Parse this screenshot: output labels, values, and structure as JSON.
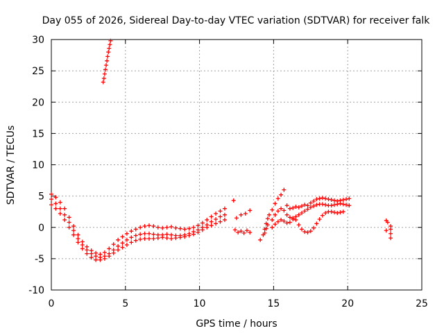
{
  "chart_data": {
    "type": "scatter",
    "title": "Day 055 of 2026, Sidereal Day-to-day VTEC variation (SDTVAR) for receiver falk",
    "xlabel": "GPS time / hours",
    "ylabel": "SDTVAR / TECUs",
    "xlim": [
      0,
      25
    ],
    "ylim": [
      -10,
      30
    ],
    "xticks": [
      0,
      5,
      10,
      15,
      20,
      25
    ],
    "yticks": [
      -10,
      -5,
      0,
      5,
      10,
      15,
      20,
      25,
      30
    ],
    "xtick_labels": [
      "0",
      "5",
      "10",
      "15",
      "20",
      "25"
    ],
    "ytick_labels": [
      "-10",
      "-5",
      "0",
      "5",
      "10",
      "15",
      "20",
      "25",
      "30"
    ],
    "grid": true,
    "legend": "none",
    "marker": "+",
    "color": "#ff0000",
    "series": [
      {
        "name": "main-track",
        "x": [
          0.0,
          0.3,
          0.6,
          0.9,
          1.2,
          1.5,
          1.8,
          2.1,
          2.4,
          2.7,
          3.0,
          3.3,
          3.6,
          3.9,
          4.2,
          4.5,
          4.8,
          5.1,
          5.4,
          5.7,
          6.0,
          6.3,
          6.6,
          6.9,
          7.2,
          7.5,
          7.8,
          8.1,
          8.4,
          8.7,
          9.0,
          9.3,
          9.6,
          9.9,
          10.2,
          10.5,
          10.8,
          11.1,
          11.4,
          11.7
        ],
        "y": [
          4.5,
          3.8,
          3.0,
          2.0,
          0.8,
          -0.5,
          -1.8,
          -2.8,
          -3.6,
          -4.2,
          -4.6,
          -4.8,
          -4.6,
          -4.2,
          -3.6,
          -3.0,
          -2.5,
          -2.0,
          -1.6,
          -1.3,
          -1.1,
          -1.0,
          -1.0,
          -1.1,
          -1.2,
          -1.2,
          -1.1,
          -1.2,
          -1.3,
          -1.3,
          -1.2,
          -1.0,
          -0.7,
          -0.4,
          0.0,
          0.4,
          0.9,
          1.3,
          1.7,
          2.0
        ]
      },
      {
        "name": "upper-track",
        "x": [
          0.0,
          0.3,
          0.6,
          0.9,
          1.2,
          1.5,
          1.8,
          2.1,
          2.4,
          2.7,
          3.0,
          3.3,
          3.6,
          3.9,
          4.2,
          4.5,
          4.8,
          5.1,
          5.4,
          5.7,
          6.0,
          6.3,
          6.6,
          6.9,
          7.2,
          7.5,
          7.8,
          8.1,
          8.4,
          8.7,
          9.0,
          9.3,
          9.6,
          9.9,
          10.2,
          10.5,
          10.8,
          11.1,
          11.4,
          11.7
        ],
        "y": [
          5.3,
          4.8,
          4.0,
          3.0,
          1.6,
          0.2,
          -1.2,
          -2.3,
          -3.1,
          -3.7,
          -4.1,
          -4.3,
          -4.0,
          -3.4,
          -2.7,
          -2.0,
          -1.5,
          -1.0,
          -0.6,
          -0.3,
          0.0,
          0.2,
          0.3,
          0.2,
          0.0,
          -0.1,
          0.0,
          0.1,
          -0.1,
          -0.2,
          -0.3,
          -0.2,
          0.0,
          0.3,
          0.7,
          1.2,
          1.7,
          2.2,
          2.6,
          3.0
        ]
      },
      {
        "name": "lower-track",
        "x": [
          0.0,
          0.3,
          0.6,
          0.9,
          1.2,
          1.5,
          1.8,
          2.1,
          2.4,
          2.7,
          3.0,
          3.3,
          3.6,
          3.9,
          4.2,
          4.5,
          4.8,
          5.1,
          5.4,
          5.7,
          6.0,
          6.3,
          6.6,
          6.9,
          7.2,
          7.5,
          7.8,
          8.1,
          8.4,
          8.7,
          9.0,
          9.3,
          9.6,
          9.9,
          10.2,
          10.5,
          10.8,
          11.1,
          11.4,
          11.7
        ],
        "y": [
          3.6,
          3.0,
          2.2,
          1.2,
          0.0,
          -1.2,
          -2.4,
          -3.4,
          -4.2,
          -4.8,
          -5.2,
          -5.2,
          -5.0,
          -4.6,
          -4.1,
          -3.6,
          -3.2,
          -2.8,
          -2.4,
          -2.1,
          -1.9,
          -1.8,
          -1.8,
          -1.8,
          -1.7,
          -1.6,
          -1.7,
          -1.8,
          -1.7,
          -1.6,
          -1.5,
          -1.3,
          -1.1,
          -0.8,
          -0.4,
          0.0,
          0.3,
          0.6,
          0.9,
          1.2
        ]
      },
      {
        "name": "steep-segment",
        "x": [
          3.5,
          3.55,
          3.6,
          3.65,
          3.7,
          3.75,
          3.8,
          3.85,
          3.9,
          3.95,
          4.0
        ],
        "y": [
          23.2,
          23.8,
          24.5,
          25.2,
          25.9,
          26.6,
          27.3,
          28.0,
          28.6,
          29.2,
          29.8
        ]
      },
      {
        "name": "mid-scatter",
        "x": [
          12.3,
          12.4,
          12.6,
          12.8,
          13.0,
          13.2,
          13.4,
          12.5,
          12.8,
          13.1,
          13.4,
          14.1,
          14.3,
          14.4,
          14.5,
          14.6,
          14.7,
          14.4,
          14.5,
          14.6
        ],
        "y": [
          4.3,
          -0.4,
          -0.8,
          -0.6,
          -0.9,
          -0.5,
          -0.8,
          1.5,
          2.0,
          2.2,
          2.7,
          -2.0,
          -1.2,
          -0.3,
          0.6,
          1.4,
          2.0,
          -0.9,
          -0.2,
          0.4
        ]
      },
      {
        "name": "late-upper-track",
        "x": [
          14.9,
          15.1,
          15.3,
          15.5,
          15.7,
          15.9,
          16.1,
          16.3,
          16.5,
          16.7,
          16.9,
          17.1,
          17.3,
          17.5,
          17.7,
          17.9,
          18.1,
          18.3,
          18.5,
          18.7,
          18.9,
          19.1,
          19.3,
          19.5,
          19.7,
          19.9,
          20.1
        ],
        "y": [
          2.8,
          3.8,
          4.6,
          5.2,
          6.0,
          3.5,
          3.0,
          3.1,
          3.3,
          3.2,
          3.4,
          3.6,
          3.5,
          3.9,
          4.2,
          4.5,
          4.6,
          4.7,
          4.6,
          4.5,
          4.4,
          4.3,
          4.2,
          4.3,
          4.4,
          4.5,
          4.6
        ]
      },
      {
        "name": "late-middle-track",
        "x": [
          14.9,
          15.1,
          15.3,
          15.5,
          15.7,
          15.9,
          16.1,
          16.3,
          16.5,
          16.7,
          16.9,
          17.1,
          17.3,
          17.5,
          17.7,
          17.9,
          18.1,
          18.3,
          18.5,
          18.7,
          18.9,
          19.1,
          19.3,
          19.5,
          19.7,
          19.9,
          20.1
        ],
        "y": [
          1.2,
          2.0,
          2.6,
          3.0,
          2.7,
          2.0,
          1.6,
          1.5,
          1.7,
          2.0,
          2.3,
          2.6,
          2.9,
          3.2,
          3.4,
          3.6,
          3.7,
          3.7,
          3.6,
          3.5,
          3.5,
          3.6,
          3.7,
          3.8,
          3.7,
          3.6,
          3.5
        ]
      },
      {
        "name": "late-lower-track",
        "x": [
          14.9,
          15.1,
          15.3,
          15.5,
          15.7,
          15.9,
          16.1,
          16.3,
          16.5,
          16.7,
          16.9,
          17.1,
          17.3,
          17.5,
          17.7,
          17.9,
          18.1,
          18.3,
          18.5,
          18.7,
          18.9,
          19.1,
          19.3,
          19.5,
          19.7
        ],
        "y": [
          0.0,
          0.5,
          0.9,
          1.2,
          1.0,
          0.7,
          0.8,
          1.3,
          1.2,
          0.4,
          -0.3,
          -0.7,
          -0.8,
          -0.6,
          -0.1,
          0.6,
          1.3,
          1.9,
          2.3,
          2.5,
          2.5,
          2.4,
          2.3,
          2.4,
          2.5
        ]
      },
      {
        "name": "end-cluster",
        "x": [
          22.6,
          22.6,
          22.7,
          22.9,
          22.9,
          22.9,
          22.9
        ],
        "y": [
          1.1,
          -0.5,
          0.8,
          0.2,
          -0.3,
          -1.0,
          -1.7
        ]
      }
    ]
  }
}
